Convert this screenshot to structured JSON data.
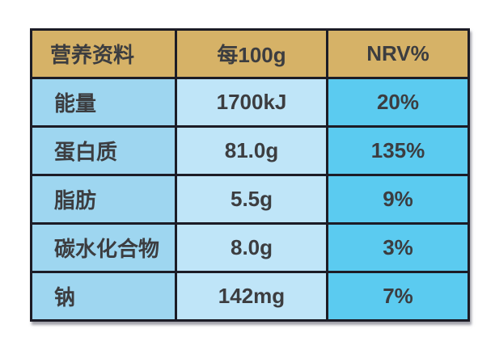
{
  "table": {
    "title_semantic": "nutrition-information-table",
    "header": {
      "col1": "营养资料",
      "col2": "每100g",
      "col3": "NRV%"
    },
    "rows": [
      {
        "name": "能量",
        "per100g": "1700kJ",
        "nrv": "20%"
      },
      {
        "name": "蛋白质",
        "per100g": "81.0g",
        "nrv": "135%"
      },
      {
        "name": "脂肪",
        "per100g": "5.5g",
        "nrv": "9%"
      },
      {
        "name": "碳水化合物",
        "per100g": "8.0g",
        "nrv": "3%"
      },
      {
        "name": "钠",
        "per100g": "142mg",
        "nrv": "7%"
      }
    ],
    "colors": {
      "header_bg": "#d6b267",
      "name_col_bg": "#9ed6f0",
      "value_col_bg": "#bfe5f8",
      "nrv_col_bg": "#5bcbf0",
      "border": "#1c1c26",
      "text": "#3c3d40",
      "page_bg": "#ffffff"
    }
  }
}
